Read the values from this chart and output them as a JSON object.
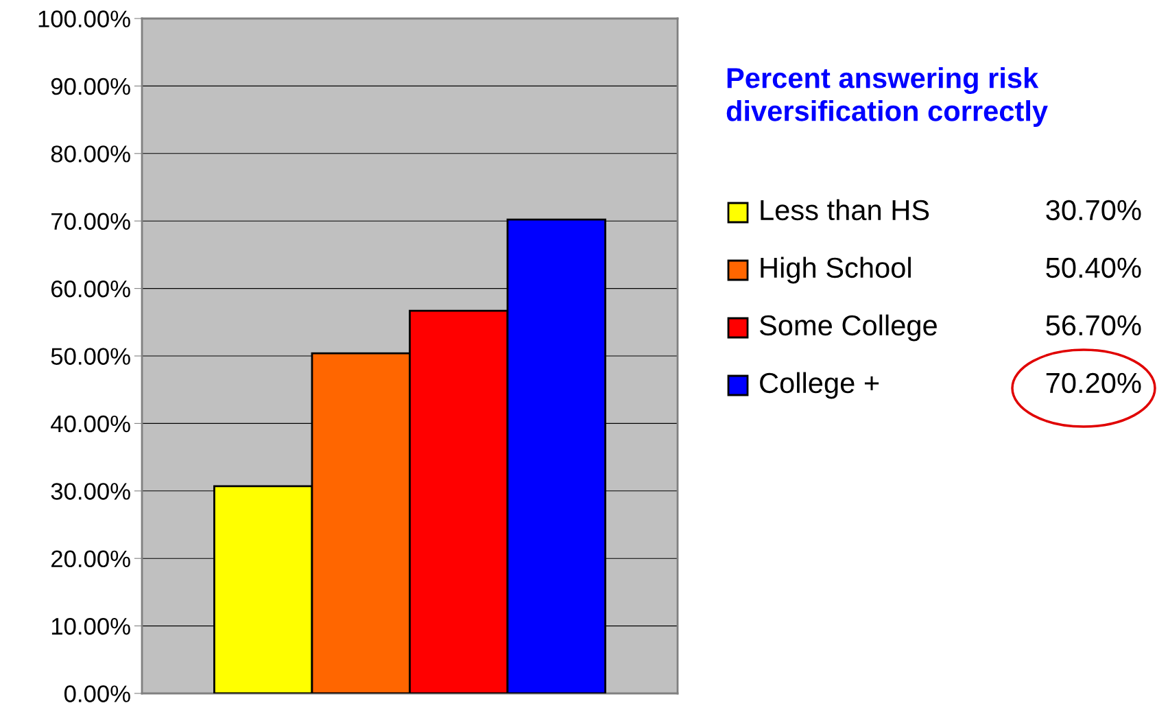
{
  "chart_data": {
    "type": "bar",
    "title": "Percent answering risk\ndiversification correctly",
    "categories": [
      null
    ],
    "series": [
      {
        "name": "Less than HS",
        "color": "#ffff00",
        "values": [
          30.7
        ]
      },
      {
        "name": "High School",
        "color": "#ff6600",
        "values": [
          50.4
        ]
      },
      {
        "name": "Some College",
        "color": "#ff0000",
        "values": [
          56.7
        ]
      },
      {
        "name": "College +",
        "color": "#0000ff",
        "values": [
          70.2
        ]
      }
    ],
    "annotations": [
      "30.70%",
      "50.40%",
      "56.70%",
      "70.20%"
    ],
    "ylim": [
      0,
      100
    ],
    "yticks": [
      {
        "value": 0,
        "label": "0.00%"
      },
      {
        "value": 10,
        "label": "10.00%"
      },
      {
        "value": 20,
        "label": "20.00%"
      },
      {
        "value": 30,
        "label": "30.00%"
      },
      {
        "value": 40,
        "label": "40.00%"
      },
      {
        "value": 50,
        "label": "50.00%"
      },
      {
        "value": 60,
        "label": "60.00%"
      },
      {
        "value": 70,
        "label": "70.00%"
      },
      {
        "value": 80,
        "label": "80.00%"
      },
      {
        "value": 90,
        "label": "90.00%"
      },
      {
        "value": 100,
        "label": "100.00%"
      }
    ],
    "grid": "y",
    "legend": "right"
  }
}
